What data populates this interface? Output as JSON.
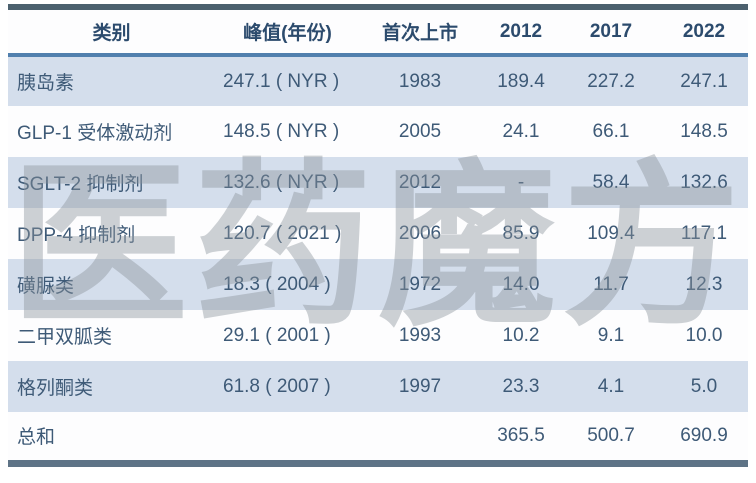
{
  "watermark": {
    "text": "医药魔方",
    "color": "#8b939b",
    "opacity": 0.42
  },
  "colors": {
    "top_border": "#4c616e",
    "bottom_border": "#5e7386",
    "header_underline": "#5180ae",
    "row_alt_blue": "#d4deec",
    "row_white": "#fdfdfe",
    "header_text": "#2c4b6d",
    "body_text": "#3e5a77"
  },
  "table": {
    "columns": [
      {
        "key": "category",
        "label": "类别"
      },
      {
        "key": "peak",
        "label": "峰值(年份)"
      },
      {
        "key": "first-launch",
        "label": "首次上市"
      },
      {
        "key": "2012",
        "label": "2012"
      },
      {
        "key": "2017",
        "label": "2017"
      },
      {
        "key": "2022",
        "label": "2022"
      }
    ],
    "rows": [
      [
        "胰岛素",
        "247.1 ( NYR )",
        "1983",
        "189.4",
        "227.2",
        "247.1"
      ],
      [
        "GLP-1 受体激动剂",
        "148.5 ( NYR )",
        "2005",
        "24.1",
        "66.1",
        "148.5"
      ],
      [
        "SGLT-2 抑制剂",
        "132.6 ( NYR )",
        "2012",
        "-",
        "58.4",
        "132.6"
      ],
      [
        "DPP-4 抑制剂",
        "120.7 ( 2021 )",
        "2006",
        "85.9",
        "109.4",
        "117.1"
      ],
      [
        "磺脲类",
        "18.3 ( 2004 )",
        "1972",
        "14.0",
        "11.7",
        "12.3"
      ],
      [
        "二甲双胍类",
        "29.1 ( 2001 )",
        "1993",
        "10.2",
        "9.1",
        "10.0"
      ],
      [
        "格列酮类",
        "61.8 ( 2007 )",
        "1997",
        "23.3",
        "4.1",
        "5.0"
      ],
      [
        "总和",
        "",
        "",
        "365.5",
        "500.7",
        "690.9"
      ]
    ]
  },
  "chart_data": {
    "type": "table",
    "title": "",
    "columns": [
      "类别",
      "峰值(年份)",
      "首次上市",
      "2012",
      "2017",
      "2022"
    ],
    "rows": [
      {
        "类别": "胰岛素",
        "峰值": 247.1,
        "峰值年份": "NYR",
        "首次上市": 1983,
        "2012": 189.4,
        "2017": 227.2,
        "2022": 247.1
      },
      {
        "类别": "GLP-1 受体激动剂",
        "峰值": 148.5,
        "峰值年份": "NYR",
        "首次上市": 2005,
        "2012": 24.1,
        "2017": 66.1,
        "2022": 148.5
      },
      {
        "类别": "SGLT-2 抑制剂",
        "峰值": 132.6,
        "峰值年份": "NYR",
        "首次上市": 2012,
        "2012": null,
        "2017": 58.4,
        "2022": 132.6
      },
      {
        "类别": "DPP-4 抑制剂",
        "峰值": 120.7,
        "峰值年份": "2021",
        "首次上市": 2006,
        "2012": 85.9,
        "2017": 109.4,
        "2022": 117.1
      },
      {
        "类别": "磺脲类",
        "峰值": 18.3,
        "峰值年份": "2004",
        "首次上市": 1972,
        "2012": 14.0,
        "2017": 11.7,
        "2022": 12.3
      },
      {
        "类别": "二甲双胍类",
        "峰值": 29.1,
        "峰值年份": "2001",
        "首次上市": 1993,
        "2012": 10.2,
        "2017": 9.1,
        "2022": 10.0
      },
      {
        "类别": "格列酮类",
        "峰值": 61.8,
        "峰值年份": "2007",
        "首次上市": 1997,
        "2012": 23.3,
        "2017": 4.1,
        "2022": 5.0
      },
      {
        "类别": "总和",
        "峰值": null,
        "峰值年份": null,
        "首次上市": null,
        "2012": 365.5,
        "2017": 500.7,
        "2022": 690.9
      }
    ]
  }
}
